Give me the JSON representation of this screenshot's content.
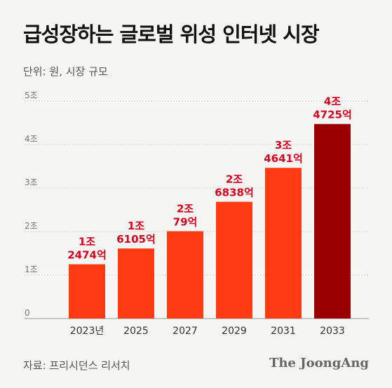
{
  "header": {
    "title": "급성장하는 글로벌 위성 인터넷 시장",
    "unit_label": "단위: 원, 시장 규모"
  },
  "footer": {
    "source": "자료: 프리시던스 리서치",
    "brand": "The JoongAng"
  },
  "colors": {
    "bar": "#ff3b14",
    "bar_highlight": "#9b0000",
    "label": "#d8001c",
    "axis": "#999999",
    "tick_text": "#777777"
  },
  "chart_data": {
    "type": "bar",
    "categories": [
      "2023년",
      "2025",
      "2027",
      "2029",
      "2031",
      "2033"
    ],
    "values": [
      12474,
      16105,
      20079,
      26838,
      34641,
      44725
    ],
    "value_unit": "억",
    "data_labels": [
      [
        "1조",
        "2474억"
      ],
      [
        "1조",
        "6105억"
      ],
      [
        "2조",
        "79억"
      ],
      [
        "2조",
        "6838억"
      ],
      [
        "3조",
        "4641억"
      ],
      [
        "4조",
        "4725억"
      ]
    ],
    "yticks": [
      0,
      10000,
      20000,
      30000,
      40000,
      50000
    ],
    "ytick_labels": [
      "0",
      "1조",
      "2조",
      "3조",
      "4조",
      "5조"
    ],
    "ylim": [
      0,
      50000
    ],
    "grid": true,
    "highlight_index": 5,
    "xlabel": "",
    "ylabel": ""
  }
}
